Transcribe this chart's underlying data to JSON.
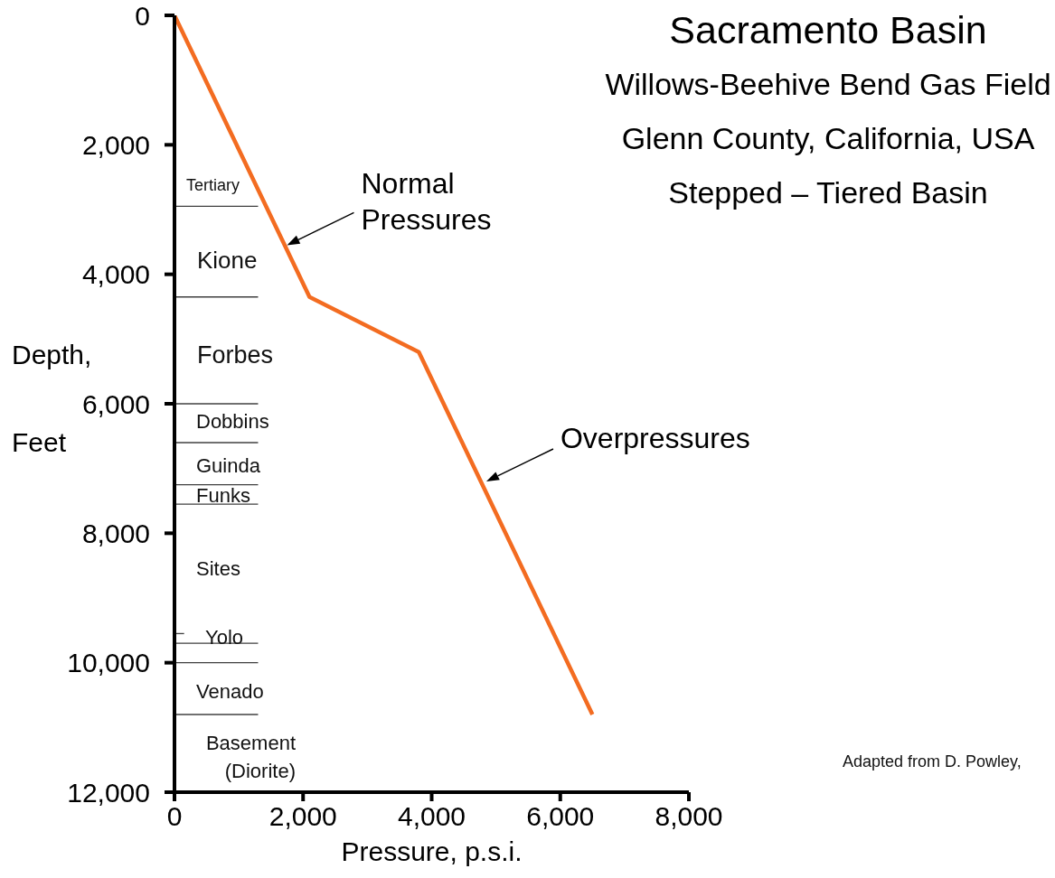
{
  "chart_data": {
    "type": "line",
    "title": "Sacramento Basin",
    "subtitle": "Willows-Beehive Bend Gas Field\nGlenn County, California, USA\nStepped – Tiered Basin",
    "xlabel": "Pressure, p.s.i.",
    "ylabel": "Depth, Feet",
    "xlim": [
      0,
      8000
    ],
    "xticks": [
      0,
      {
        "value": 2000,
        "label": "2,000"
      },
      {
        "value": 4000,
        "label": "4,000"
      },
      {
        "value": 6000,
        "label": "6,000"
      },
      {
        "value": 8000,
        "label": "8,000"
      }
    ],
    "ylim": [
      12000,
      0
    ],
    "yticks": [
      0,
      {
        "value": 2000,
        "label": "2,000"
      },
      {
        "value": 4000,
        "label": "4,000"
      },
      {
        "value": 6000,
        "label": "6,000"
      },
      {
        "value": 8000,
        "label": "8,000"
      },
      {
        "value": 10000,
        "label": "10,000"
      },
      {
        "value": 12000,
        "label": "12,000"
      }
    ],
    "series": [
      {
        "color": "#f36c21",
        "x": [
          0,
          2100,
          3800,
          6500
        ],
        "values": [
          0,
          4350,
          5200,
          10800
        ]
      },
      {
        "color": "#404040",
        "x": [
          0,
          1300
        ],
        "values": [
          2950,
          2950
        ]
      },
      {
        "color": "#404040",
        "x": [
          0,
          1300
        ],
        "values": [
          4350,
          4350
        ]
      },
      {
        "color": "#404040",
        "x": [
          0,
          1300
        ],
        "values": [
          6000,
          6000
        ]
      },
      {
        "color": "#404040",
        "x": [
          0,
          1300
        ],
        "values": [
          6600,
          6600
        ]
      },
      {
        "color": "#404040",
        "x": [
          0,
          1300
        ],
        "values": [
          7250,
          7250
        ]
      },
      {
        "color": "#404040",
        "x": [
          0,
          1300
        ],
        "values": [
          7550,
          7550
        ]
      },
      {
        "color": "#404040",
        "x": [
          0,
          150
        ],
        "values": [
          9550,
          9550
        ]
      },
      {
        "color": "#404040",
        "x": [
          0,
          1300
        ],
        "values": [
          9700,
          9700
        ]
      },
      {
        "color": "#404040",
        "x": [
          0,
          1300
        ],
        "values": [
          10000,
          10000
        ]
      },
      {
        "color": "#404040",
        "x": [
          0,
          1300
        ],
        "values": [
          10800,
          10800
        ]
      }
    ],
    "annotations": [
      {
        "text": "Normal Pressures",
        "x": 1750,
        "y": 3550
      },
      {
        "text": "Overpressures",
        "x": 4850,
        "y": 7200
      },
      "Tertiary",
      "Kione",
      "Forbes",
      "Dobbins",
      "Guinda",
      "Funks",
      "Sites",
      "Yolo",
      "Venado",
      "Basement (Diorite)",
      "Adapted from D. Powley,"
    ]
  }
}
